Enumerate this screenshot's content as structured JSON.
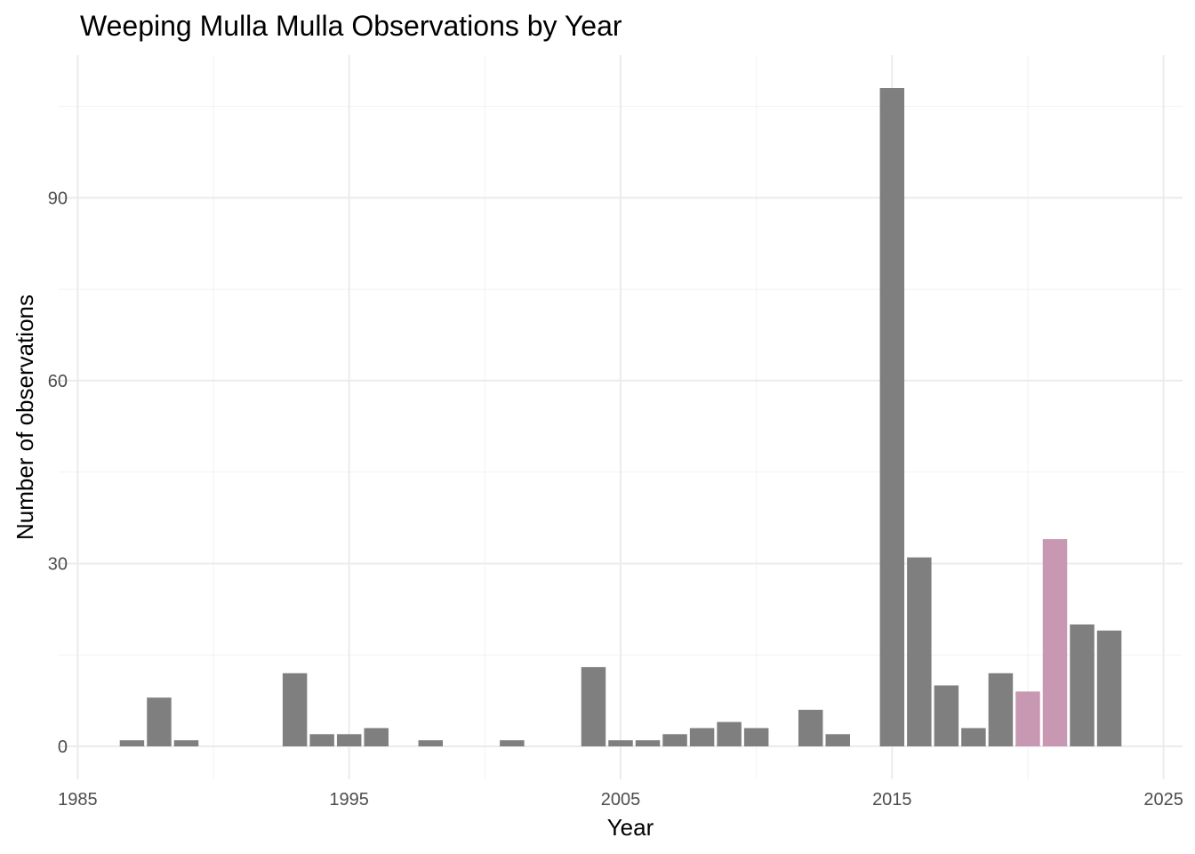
{
  "chart_data": {
    "type": "bar",
    "title": "Weeping Mulla Mulla Observations by Year",
    "xlabel": "Year",
    "ylabel": "Number of observations",
    "xlim": [
      1984.3,
      2025.7
    ],
    "ylim": [
      -5.4,
      113.4
    ],
    "x_ticks": [
      1985,
      1995,
      2005,
      2015,
      2025
    ],
    "y_ticks": [
      0,
      30,
      60,
      90
    ],
    "grid": true,
    "colors": {
      "default": "#7f7f7f",
      "highlight": "#c898b3",
      "grid": "#ebebeb",
      "text": "#4d4d4d"
    },
    "x": [
      1987,
      1988,
      1989,
      1993,
      1994,
      1995,
      1996,
      1998,
      2001,
      2004,
      2005,
      2006,
      2007,
      2008,
      2009,
      2010,
      2012,
      2013,
      2015,
      2016,
      2017,
      2018,
      2019,
      2020,
      2021,
      2022,
      2023
    ],
    "values": [
      1,
      8,
      1,
      12,
      2,
      2,
      3,
      1,
      1,
      13,
      1,
      1,
      2,
      3,
      4,
      3,
      6,
      2,
      108,
      31,
      10,
      3,
      12,
      9,
      34,
      20,
      19
    ],
    "highlight": [
      false,
      false,
      false,
      false,
      false,
      false,
      false,
      false,
      false,
      false,
      false,
      false,
      false,
      false,
      false,
      false,
      false,
      false,
      false,
      false,
      false,
      false,
      false,
      true,
      true,
      false,
      false
    ]
  }
}
